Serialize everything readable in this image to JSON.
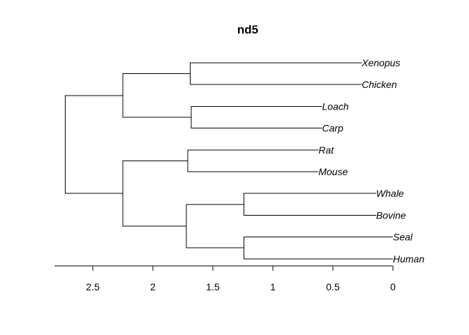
{
  "chart_data": {
    "type": "dendrogram",
    "title": "nd5",
    "axis": {
      "ticks": [
        2.5,
        2,
        1.5,
        1,
        0.5,
        0
      ],
      "tick_labels": [
        "2.5",
        "2",
        "1.5",
        "1",
        "0.5",
        "0"
      ],
      "reversed": true
    },
    "leaves": [
      {
        "id": "xenopus",
        "label": "Xenopus",
        "height": 0.26
      },
      {
        "id": "chicken",
        "label": "Chicken",
        "height": 0.26
      },
      {
        "id": "loach",
        "label": "Loach",
        "height": 0.59
      },
      {
        "id": "carp",
        "label": "Carp",
        "height": 0.59
      },
      {
        "id": "rat",
        "label": "Rat",
        "height": 0.62
      },
      {
        "id": "mouse",
        "label": "Mouse",
        "height": 0.62
      },
      {
        "id": "whale",
        "label": "Whale",
        "height": 0.14
      },
      {
        "id": "bovine",
        "label": "Bovine",
        "height": 0.14
      },
      {
        "id": "seal",
        "label": "Seal",
        "height": 0.0
      },
      {
        "id": "human",
        "label": "Human",
        "height": 0.0
      }
    ],
    "merges": [
      {
        "id": "n1",
        "children": [
          "xenopus",
          "chicken"
        ],
        "height": 1.69
      },
      {
        "id": "n2",
        "children": [
          "loach",
          "carp"
        ],
        "height": 1.68
      },
      {
        "id": "n3",
        "children": [
          "n1",
          "n2"
        ],
        "height": 2.25
      },
      {
        "id": "n4",
        "children": [
          "rat",
          "mouse"
        ],
        "height": 1.71
      },
      {
        "id": "n5",
        "children": [
          "whale",
          "bovine"
        ],
        "height": 1.24
      },
      {
        "id": "n6",
        "children": [
          "seal",
          "human"
        ],
        "height": 1.24
      },
      {
        "id": "n7",
        "children": [
          "n5",
          "n6"
        ],
        "height": 1.72
      },
      {
        "id": "n8",
        "children": [
          "n4",
          "n7"
        ],
        "height": 2.25
      },
      {
        "id": "root",
        "children": [
          "n3",
          "n8"
        ],
        "height": 2.73
      }
    ]
  }
}
